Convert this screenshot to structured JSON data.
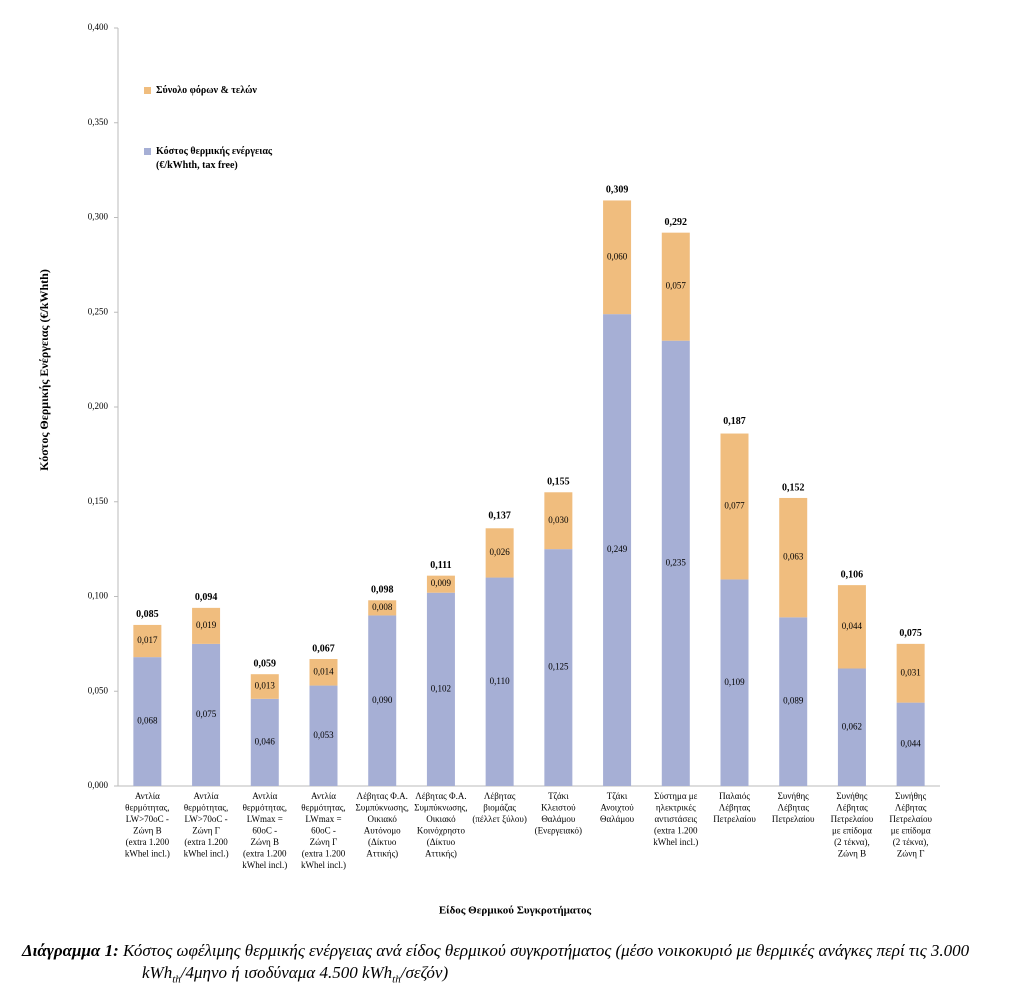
{
  "chart_data": {
    "type": "stacked-bar",
    "ylabel": "Κόστος Θερμικής Ενέργειας (€/kWhth)",
    "xlabel": "Είδος Θερμικού Συγκροτήματος",
    "categories": [
      [
        "Αντλία",
        "θερμότητας,",
        "LW>70oC -",
        "Ζώνη Β",
        "(extra 1.200",
        "kWhel incl.)"
      ],
      [
        "Αντλία",
        "θερμότητας,",
        "LW>70oC -",
        "Ζώνη Γ",
        "(extra 1.200",
        "kWhel incl.)"
      ],
      [
        "Αντλία",
        "θερμότητας,",
        "LWmax =",
        "60oC -",
        "Ζώνη Β",
        "(extra 1.200",
        "kWhel incl.)"
      ],
      [
        "Αντλία",
        "θερμότητας,",
        "LWmax =",
        "60oC -",
        "Ζώνη Γ",
        "(extra 1.200",
        "kWhel incl.)"
      ],
      [
        "Λέβητας Φ.Α.",
        "Συμπύκνωσης,",
        "Οικιακό",
        "Αυτόνομο",
        "(Δίκτυο",
        "Αττικής)"
      ],
      [
        "Λέβητας Φ.Α.",
        "Συμπύκνωσης,",
        "Οικιακό",
        "Κοινόχρηστο",
        "(Δίκτυο",
        "Αττικής)"
      ],
      [
        "Λέβητας",
        "βιομάζας",
        "(πέλλετ ξύλου)"
      ],
      [
        "Τζάκι",
        "Κλειστού",
        "Θαλάμου",
        "(Ενεργειακό)"
      ],
      [
        "Τζάκι",
        "Ανοιχτού",
        "Θαλάμου"
      ],
      [
        "Σύστημα με",
        "ηλεκτρικές",
        "αντιστάσεις",
        "(extra 1.200",
        "kWhel incl.)"
      ],
      [
        "Παλαιός",
        "Λέβητας",
        "Πετρελαίου"
      ],
      [
        "Συνήθης",
        "Λέβητας",
        "Πετρελαίου"
      ],
      [
        "Συνήθης",
        "Λέβητας",
        "Πετρελαίου",
        "με επίδομα",
        "(2 τέκνα),",
        "Ζώνη Β"
      ],
      [
        "Συνήθης",
        "Λέβητας",
        "Πετρελαίου",
        "με επίδομα",
        "(2 τέκνα),",
        "Ζώνη Γ"
      ]
    ],
    "series": [
      {
        "name": "Κόστος θερμικής ενέργειας (€/kWhth, tax free)",
        "color": "#a6afd5",
        "values": [
          0.068,
          0.075,
          0.046,
          0.053,
          0.09,
          0.102,
          0.11,
          0.125,
          0.249,
          0.235,
          0.109,
          0.089,
          0.062,
          0.044
        ],
        "value_labels": [
          "0,068",
          "0,075",
          "0,046",
          "0,053",
          "0,090",
          "0,102",
          "0,110",
          "0,125",
          "0,249",
          "0,235",
          "0,109",
          "0,089",
          "0,062",
          "0,044"
        ]
      },
      {
        "name": "Σύνολο φόρων & τελών",
        "color": "#f0bd7e",
        "values": [
          0.017,
          0.019,
          0.013,
          0.014,
          0.008,
          0.009,
          0.026,
          0.03,
          0.06,
          0.057,
          0.077,
          0.063,
          0.044,
          0.031
        ],
        "value_labels": [
          "0,017",
          "0,019",
          "0,013",
          "0,014",
          "0,008",
          "0,009",
          "0,026",
          "0,030",
          "0,060",
          "0,057",
          "0,077",
          "0,063",
          "0,044",
          "0,031"
        ]
      }
    ],
    "totals": {
      "values": [
        0.085,
        0.094,
        0.059,
        0.067,
        0.098,
        0.111,
        0.137,
        0.155,
        0.309,
        0.292,
        0.187,
        0.152,
        0.106,
        0.075
      ],
      "value_labels": [
        "0,085",
        "0,094",
        "0,059",
        "0,067",
        "0,098",
        "0,111",
        "0,137",
        "0,155",
        "0,309",
        "0,292",
        "0,187",
        "0,152",
        "0,106",
        "0,075"
      ]
    },
    "ylim": [
      0,
      0.4
    ],
    "yticks": [
      {
        "value": 0,
        "label": "0,000"
      },
      {
        "value": 0.05,
        "label": "0,050"
      },
      {
        "value": 0.1,
        "label": "0,100"
      },
      {
        "value": 0.15,
        "label": "0,150"
      },
      {
        "value": 0.2,
        "label": "0,200"
      },
      {
        "value": 0.25,
        "label": "0,250"
      },
      {
        "value": 0.3,
        "label": "0,300"
      },
      {
        "value": 0.35,
        "label": "0,350"
      },
      {
        "value": 0.4,
        "label": "0,400"
      }
    ],
    "grid": false,
    "legend": "top-left"
  },
  "caption": {
    "label": "Διάγραμμα 1:",
    "parts": [
      " Κόστος ωφέλιμης θερμικής ενέργειας ανά είδος θερμικού συγκροτήματος (μέσο νοικοκυριό με θερμικές ανάγκες περί τις 3.000 kWh",
      "th",
      "/4μηνο ή ισοδύναμα 4.500 kWh",
      "th",
      "/σεζόν)"
    ]
  }
}
